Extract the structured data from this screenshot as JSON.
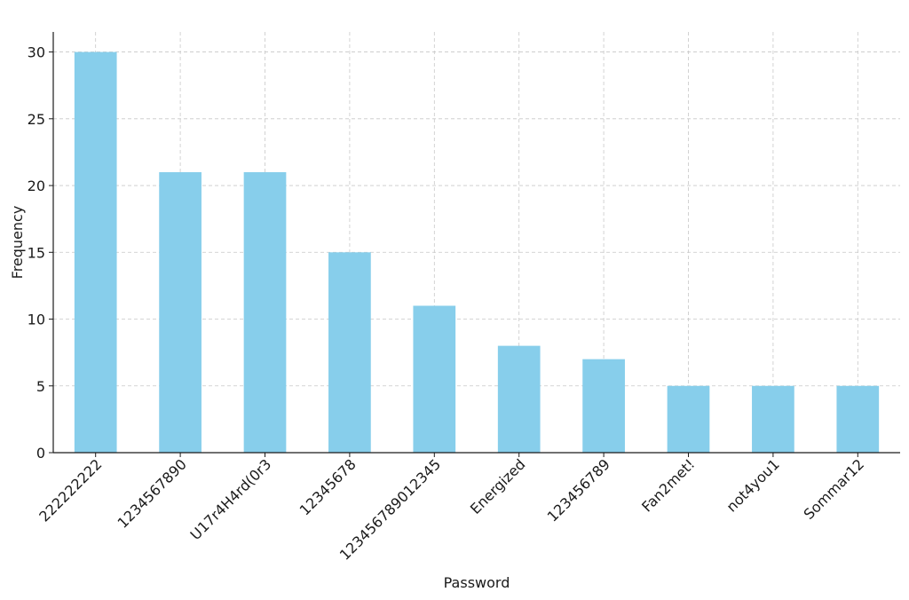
{
  "chart_data": {
    "type": "bar",
    "categories": [
      "222222222",
      "1234567890",
      "U17r4H4rd(0r3",
      "12345678",
      "12345678901234​5",
      "Energized",
      "123456789",
      "Fan2met!",
      "not4you1",
      "Sommar12"
    ],
    "values": [
      30,
      21,
      21,
      15,
      11,
      8,
      7,
      5,
      5,
      5
    ],
    "title": "",
    "xlabel": "Password",
    "ylabel": "Frequency",
    "ylim": [
      0,
      31.5
    ],
    "yticks": [
      0,
      5,
      10,
      15,
      20,
      25,
      30
    ],
    "grid": true,
    "bar_color": "#87ceeb"
  }
}
